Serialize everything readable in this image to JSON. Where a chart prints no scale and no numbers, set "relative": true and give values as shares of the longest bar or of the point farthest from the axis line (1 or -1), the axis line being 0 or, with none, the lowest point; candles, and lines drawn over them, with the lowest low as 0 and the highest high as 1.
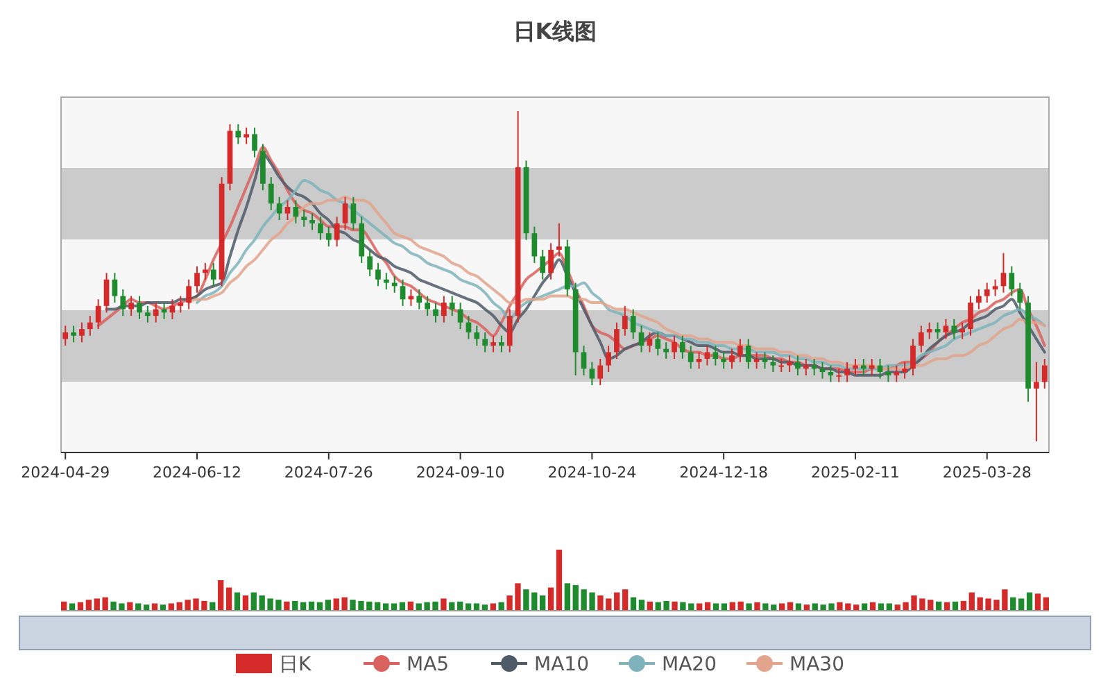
{
  "chart_data": [
    {
      "type": "candlestick",
      "title": "日K线图",
      "relative": true,
      "legend": "bottom",
      "categories": [
        "2024-04-29",
        null,
        null,
        null,
        null,
        null,
        null,
        null,
        null,
        null,
        null,
        null,
        null,
        null,
        null,
        null,
        "2024-06-12",
        null,
        null,
        null,
        null,
        null,
        null,
        null,
        null,
        null,
        null,
        null,
        null,
        null,
        null,
        null,
        "2024-07-26",
        null,
        null,
        null,
        null,
        null,
        null,
        null,
        null,
        null,
        null,
        null,
        null,
        null,
        null,
        null,
        "2024-09-10",
        null,
        null,
        null,
        null,
        null,
        null,
        null,
        null,
        null,
        null,
        null,
        null,
        null,
        null,
        null,
        "2024-10-24",
        null,
        null,
        null,
        null,
        null,
        null,
        null,
        null,
        null,
        null,
        null,
        null,
        null,
        null,
        null,
        "2024-12-18",
        null,
        null,
        null,
        null,
        null,
        null,
        null,
        null,
        null,
        null,
        null,
        null,
        null,
        null,
        null,
        "2025-02-11",
        null,
        null,
        null,
        null,
        null,
        null,
        null,
        null,
        null,
        null,
        null,
        null,
        null,
        null,
        null,
        "2025-03-28",
        null,
        null,
        null,
        null,
        null,
        null,
        null
      ],
      "series": [
        {
          "name": "日K",
          "type": "candlestick",
          "color": "#d42a2a",
          "ohlc": [
            [
              0.31,
              0.35,
              0.29,
              0.33
            ],
            [
              0.33,
              0.35,
              0.3,
              0.32
            ],
            [
              0.32,
              0.36,
              0.3,
              0.34
            ],
            [
              0.34,
              0.38,
              0.32,
              0.36
            ],
            [
              0.36,
              0.43,
              0.34,
              0.41
            ],
            [
              0.41,
              0.51,
              0.39,
              0.49
            ],
            [
              0.49,
              0.51,
              0.42,
              0.44
            ],
            [
              0.44,
              0.46,
              0.38,
              0.4
            ],
            [
              0.4,
              0.44,
              0.38,
              0.42
            ],
            [
              0.42,
              0.44,
              0.37,
              0.39
            ],
            [
              0.39,
              0.41,
              0.36,
              0.38
            ],
            [
              0.38,
              0.42,
              0.36,
              0.4
            ],
            [
              0.4,
              0.42,
              0.37,
              0.39
            ],
            [
              0.39,
              0.43,
              0.37,
              0.41
            ],
            [
              0.41,
              0.44,
              0.39,
              0.42
            ],
            [
              0.42,
              0.49,
              0.4,
              0.47
            ],
            [
              0.47,
              0.53,
              0.45,
              0.51
            ],
            [
              0.51,
              0.54,
              0.49,
              0.52
            ],
            [
              0.52,
              0.54,
              0.47,
              0.49
            ],
            [
              0.49,
              0.8,
              0.47,
              0.78
            ],
            [
              0.78,
              0.96,
              0.76,
              0.94
            ],
            [
              0.94,
              0.96,
              0.9,
              0.92
            ],
            [
              0.92,
              0.95,
              0.9,
              0.93
            ],
            [
              0.93,
              0.95,
              0.86,
              0.88
            ],
            [
              0.88,
              0.9,
              0.76,
              0.78
            ],
            [
              0.78,
              0.8,
              0.7,
              0.72
            ],
            [
              0.72,
              0.74,
              0.67,
              0.69
            ],
            [
              0.69,
              0.73,
              0.67,
              0.71
            ],
            [
              0.71,
              0.73,
              0.66,
              0.68
            ],
            [
              0.68,
              0.7,
              0.65,
              0.67
            ],
            [
              0.67,
              0.69,
              0.64,
              0.66
            ],
            [
              0.66,
              0.68,
              0.61,
              0.63
            ],
            [
              0.63,
              0.65,
              0.59,
              0.61
            ],
            [
              0.61,
              0.68,
              0.59,
              0.66
            ],
            [
              0.66,
              0.74,
              0.64,
              0.72
            ],
            [
              0.72,
              0.74,
              0.64,
              0.66
            ],
            [
              0.66,
              0.68,
              0.54,
              0.56
            ],
            [
              0.56,
              0.58,
              0.5,
              0.52
            ],
            [
              0.52,
              0.54,
              0.47,
              0.49
            ],
            [
              0.49,
              0.51,
              0.46,
              0.48
            ],
            [
              0.48,
              0.5,
              0.45,
              0.47
            ],
            [
              0.47,
              0.49,
              0.41,
              0.43
            ],
            [
              0.43,
              0.46,
              0.41,
              0.44
            ],
            [
              0.44,
              0.46,
              0.4,
              0.42
            ],
            [
              0.42,
              0.44,
              0.38,
              0.4
            ],
            [
              0.4,
              0.42,
              0.36,
              0.38
            ],
            [
              0.38,
              0.44,
              0.36,
              0.42
            ],
            [
              0.42,
              0.44,
              0.38,
              0.4
            ],
            [
              0.4,
              0.42,
              0.34,
              0.36
            ],
            [
              0.36,
              0.38,
              0.31,
              0.33
            ],
            [
              0.33,
              0.35,
              0.29,
              0.31
            ],
            [
              0.31,
              0.33,
              0.27,
              0.29
            ],
            [
              0.29,
              0.32,
              0.27,
              0.3
            ],
            [
              0.3,
              0.32,
              0.27,
              0.29
            ],
            [
              0.29,
              0.4,
              0.27,
              0.38
            ],
            [
              0.38,
              1.0,
              0.36,
              0.83
            ],
            [
              0.83,
              0.85,
              0.61,
              0.63
            ],
            [
              0.63,
              0.65,
              0.54,
              0.56
            ],
            [
              0.56,
              0.58,
              0.49,
              0.51
            ],
            [
              0.51,
              0.6,
              0.49,
              0.58
            ],
            [
              0.58,
              0.66,
              0.56,
              0.59
            ],
            [
              0.59,
              0.61,
              0.44,
              0.46
            ],
            [
              0.46,
              0.48,
              0.2,
              0.27
            ],
            [
              0.27,
              0.29,
              0.2,
              0.22
            ],
            [
              0.22,
              0.24,
              0.17,
              0.19
            ],
            [
              0.19,
              0.25,
              0.17,
              0.23
            ],
            [
              0.23,
              0.29,
              0.21,
              0.27
            ],
            [
              0.27,
              0.36,
              0.25,
              0.34
            ],
            [
              0.34,
              0.41,
              0.32,
              0.38
            ],
            [
              0.38,
              0.4,
              0.31,
              0.33
            ],
            [
              0.33,
              0.35,
              0.27,
              0.29
            ],
            [
              0.29,
              0.33,
              0.27,
              0.31
            ],
            [
              0.31,
              0.33,
              0.26,
              0.28
            ],
            [
              0.28,
              0.3,
              0.25,
              0.27
            ],
            [
              0.27,
              0.32,
              0.25,
              0.3
            ],
            [
              0.3,
              0.32,
              0.25,
              0.27
            ],
            [
              0.27,
              0.29,
              0.22,
              0.24
            ],
            [
              0.24,
              0.27,
              0.22,
              0.25
            ],
            [
              0.25,
              0.29,
              0.23,
              0.27
            ],
            [
              0.27,
              0.29,
              0.23,
              0.25
            ],
            [
              0.25,
              0.27,
              0.22,
              0.24
            ],
            [
              0.24,
              0.28,
              0.22,
              0.26
            ],
            [
              0.26,
              0.31,
              0.24,
              0.29
            ],
            [
              0.29,
              0.31,
              0.22,
              0.24
            ],
            [
              0.24,
              0.27,
              0.22,
              0.25
            ],
            [
              0.25,
              0.27,
              0.22,
              0.24
            ],
            [
              0.24,
              0.26,
              0.21,
              0.23
            ],
            [
              0.23,
              0.25,
              0.21,
              0.23
            ],
            [
              0.23,
              0.26,
              0.21,
              0.24
            ],
            [
              0.24,
              0.26,
              0.2,
              0.22
            ],
            [
              0.22,
              0.25,
              0.2,
              0.23
            ],
            [
              0.23,
              0.25,
              0.2,
              0.22
            ],
            [
              0.22,
              0.24,
              0.19,
              0.21
            ],
            [
              0.21,
              0.23,
              0.18,
              0.2
            ],
            [
              0.2,
              0.22,
              0.18,
              0.2
            ],
            [
              0.2,
              0.24,
              0.18,
              0.22
            ],
            [
              0.22,
              0.25,
              0.2,
              0.23
            ],
            [
              0.23,
              0.25,
              0.2,
              0.22
            ],
            [
              0.22,
              0.25,
              0.2,
              0.23
            ],
            [
              0.23,
              0.25,
              0.19,
              0.21
            ],
            [
              0.21,
              0.23,
              0.18,
              0.2
            ],
            [
              0.2,
              0.23,
              0.18,
              0.21
            ],
            [
              0.21,
              0.24,
              0.19,
              0.22
            ],
            [
              0.22,
              0.31,
              0.2,
              0.29
            ],
            [
              0.29,
              0.35,
              0.27,
              0.33
            ],
            [
              0.33,
              0.36,
              0.31,
              0.34
            ],
            [
              0.34,
              0.36,
              0.31,
              0.33
            ],
            [
              0.33,
              0.37,
              0.31,
              0.35
            ],
            [
              0.35,
              0.37,
              0.31,
              0.33
            ],
            [
              0.33,
              0.36,
              0.31,
              0.34
            ],
            [
              0.34,
              0.44,
              0.32,
              0.42
            ],
            [
              0.42,
              0.46,
              0.4,
              0.44
            ],
            [
              0.44,
              0.48,
              0.42,
              0.46
            ],
            [
              0.46,
              0.49,
              0.44,
              0.47
            ],
            [
              0.47,
              0.57,
              0.45,
              0.51
            ],
            [
              0.51,
              0.53,
              0.44,
              0.46
            ],
            [
              0.46,
              0.48,
              0.4,
              0.42
            ],
            [
              0.42,
              0.44,
              0.12,
              0.16
            ],
            [
              0.16,
              0.24,
              0.0,
              0.18
            ],
            [
              0.18,
              0.25,
              0.16,
              0.23
            ]
          ],
          "colors": [
            "#d42a2a",
            "#1e8c2e",
            "#d42a2a",
            "#d42a2a",
            "#d42a2a",
            "#d42a2a",
            "#1e8c2e",
            "#1e8c2e",
            "#d42a2a",
            "#1e8c2e",
            "#1e8c2e",
            "#d42a2a",
            "#1e8c2e",
            "#d42a2a",
            "#d42a2a",
            "#d42a2a",
            "#d42a2a",
            "#d42a2a",
            "#1e8c2e",
            "#d42a2a",
            "#d42a2a",
            "#1e8c2e",
            "#d42a2a",
            "#1e8c2e",
            "#1e8c2e",
            "#1e8c2e",
            "#1e8c2e",
            "#d42a2a",
            "#1e8c2e",
            "#1e8c2e",
            "#1e8c2e",
            "#1e8c2e",
            "#1e8c2e",
            "#d42a2a",
            "#d42a2a",
            "#1e8c2e",
            "#1e8c2e",
            "#1e8c2e",
            "#1e8c2e",
            "#1e8c2e",
            "#1e8c2e",
            "#1e8c2e",
            "#d42a2a",
            "#1e8c2e",
            "#1e8c2e",
            "#1e8c2e",
            "#d42a2a",
            "#1e8c2e",
            "#1e8c2e",
            "#1e8c2e",
            "#1e8c2e",
            "#1e8c2e",
            "#d42a2a",
            "#1e8c2e",
            "#d42a2a",
            "#d42a2a",
            "#1e8c2e",
            "#1e8c2e",
            "#1e8c2e",
            "#d42a2a",
            "#d42a2a",
            "#1e8c2e",
            "#1e8c2e",
            "#1e8c2e",
            "#1e8c2e",
            "#d42a2a",
            "#d42a2a",
            "#d42a2a",
            "#d42a2a",
            "#1e8c2e",
            "#1e8c2e",
            "#d42a2a",
            "#1e8c2e",
            "#1e8c2e",
            "#d42a2a",
            "#1e8c2e",
            "#1e8c2e",
            "#d42a2a",
            "#d42a2a",
            "#1e8c2e",
            "#1e8c2e",
            "#d42a2a",
            "#d42a2a",
            "#1e8c2e",
            "#d42a2a",
            "#1e8c2e",
            "#1e8c2e",
            "#d42a2a",
            "#d42a2a",
            "#1e8c2e",
            "#d42a2a",
            "#1e8c2e",
            "#1e8c2e",
            "#1e8c2e",
            "#d42a2a",
            "#d42a2a",
            "#d42a2a",
            "#1e8c2e",
            "#d42a2a",
            "#1e8c2e",
            "#1e8c2e",
            "#d42a2a",
            "#d42a2a",
            "#d42a2a",
            "#d42a2a",
            "#d42a2a",
            "#1e8c2e",
            "#d42a2a",
            "#1e8c2e",
            "#d42a2a",
            "#d42a2a",
            "#d42a2a",
            "#d42a2a",
            "#d42a2a",
            "#d42a2a",
            "#1e8c2e",
            "#1e8c2e",
            "#1e8c2e",
            "#d42a2a",
            "#d42a2a"
          ]
        },
        {
          "name": "MA5",
          "type": "line",
          "color": "#d9625e",
          "values": [
            null,
            null,
            null,
            null,
            0.35,
            0.37,
            0.39,
            0.41,
            0.43,
            0.42,
            0.42,
            0.41,
            0.4,
            0.41,
            0.42,
            0.43,
            0.44,
            0.49,
            0.55,
            0.6,
            0.65,
            0.71,
            0.77,
            0.83,
            0.89,
            0.85,
            0.81,
            0.76,
            0.72,
            0.7,
            0.69,
            0.67,
            0.65,
            0.65,
            0.65,
            0.64,
            0.64,
            0.61,
            0.57,
            0.54,
            0.5,
            0.48,
            0.47,
            0.45,
            0.43,
            0.42,
            0.41,
            0.4,
            0.39,
            0.37,
            0.36,
            0.34,
            0.32,
            0.36,
            0.41,
            0.45,
            0.49,
            0.51,
            0.53,
            0.55,
            0.57,
            0.52,
            0.46,
            0.41,
            0.35,
            0.33,
            0.32,
            0.3,
            0.28,
            0.29,
            0.3,
            0.31,
            0.32,
            0.31,
            0.3,
            0.28,
            0.27,
            0.27,
            0.26,
            0.26,
            0.25,
            0.25,
            0.26,
            0.26,
            0.26,
            0.26,
            0.25,
            0.25,
            0.24,
            0.24,
            0.23,
            0.23,
            0.22,
            0.22,
            0.22,
            0.21,
            0.21,
            0.21,
            0.22,
            0.22,
            0.22,
            0.23,
            0.24,
            0.24,
            0.25,
            0.27,
            0.3,
            0.32,
            0.34,
            0.36,
            0.37,
            0.39,
            0.4,
            0.42,
            0.43,
            0.45,
            0.46,
            0.4,
            0.35,
            0.29
          ]
        },
        {
          "name": "MA10",
          "type": "line",
          "color": "#4d5b69",
          "values": [
            null,
            null,
            null,
            null,
            null,
            0.4,
            0.4,
            0.41,
            0.41,
            0.41,
            0.42,
            0.42,
            0.42,
            0.42,
            0.43,
            0.43,
            0.44,
            0.46,
            0.47,
            0.48,
            0.56,
            0.64,
            0.71,
            0.79,
            0.87,
            0.84,
            0.8,
            0.77,
            0.75,
            0.74,
            0.72,
            0.69,
            0.67,
            0.64,
            0.63,
            0.61,
            0.6,
            0.58,
            0.56,
            0.55,
            0.53,
            0.52,
            0.51,
            0.49,
            0.48,
            0.47,
            0.46,
            0.45,
            0.44,
            0.43,
            0.42,
            0.4,
            0.38,
            0.35,
            0.33,
            0.37,
            0.4,
            0.44,
            0.48,
            0.51,
            0.55,
            0.5,
            0.45,
            0.4,
            0.35,
            0.3,
            0.25,
            0.26,
            0.28,
            0.29,
            0.3,
            0.32,
            0.33,
            0.32,
            0.32,
            0.31,
            0.3,
            0.29,
            0.29,
            0.28,
            0.27,
            0.27,
            0.26,
            0.26,
            0.25,
            0.25,
            0.25,
            0.24,
            0.24,
            0.23,
            0.23,
            0.23,
            0.22,
            0.22,
            0.21,
            0.21,
            0.2,
            0.2,
            0.2,
            0.2,
            0.21,
            0.21,
            0.21,
            0.23,
            0.25,
            0.28,
            0.3,
            0.32,
            0.33,
            0.34,
            0.36,
            0.37,
            0.38,
            0.4,
            0.41,
            0.43,
            0.39,
            0.35,
            0.31,
            0.27
          ]
        },
        {
          "name": "MA20",
          "type": "line",
          "color": "#7fb3bb",
          "values": [
            null,
            null,
            null,
            null,
            null,
            null,
            null,
            null,
            null,
            null,
            null,
            null,
            null,
            null,
            null,
            null,
            0.42,
            0.44,
            0.45,
            0.47,
            0.51,
            0.54,
            0.58,
            0.61,
            0.65,
            0.68,
            0.71,
            0.73,
            0.76,
            0.79,
            0.78,
            0.76,
            0.75,
            0.73,
            0.72,
            0.7,
            0.68,
            0.66,
            0.64,
            0.62,
            0.6,
            0.59,
            0.57,
            0.56,
            0.54,
            0.53,
            0.52,
            0.51,
            0.49,
            0.48,
            0.47,
            0.45,
            0.42,
            0.4,
            0.37,
            0.4,
            0.42,
            0.43,
            0.44,
            0.45,
            0.46,
            0.47,
            0.47,
            0.48,
            0.45,
            0.43,
            0.4,
            0.39,
            0.38,
            0.36,
            0.35,
            0.34,
            0.33,
            0.32,
            0.32,
            0.31,
            0.31,
            0.3,
            0.3,
            0.29,
            0.29,
            0.28,
            0.28,
            0.28,
            0.27,
            0.27,
            0.27,
            0.26,
            0.26,
            0.25,
            0.25,
            0.24,
            0.24,
            0.23,
            0.23,
            0.22,
            0.22,
            0.22,
            0.22,
            0.22,
            0.23,
            0.23,
            0.23,
            0.24,
            0.26,
            0.27,
            0.28,
            0.29,
            0.31,
            0.32,
            0.33,
            0.34,
            0.35,
            0.36,
            0.38,
            0.39,
            0.4,
            0.38,
            0.37,
            0.35
          ]
        },
        {
          "name": "MA30",
          "type": "line",
          "color": "#e2a48c",
          "values": [
            null,
            null,
            null,
            null,
            null,
            null,
            null,
            null,
            null,
            null,
            null,
            null,
            null,
            null,
            null,
            0.42,
            0.43,
            0.43,
            0.44,
            0.45,
            0.48,
            0.5,
            0.53,
            0.55,
            0.58,
            0.61,
            0.63,
            0.66,
            0.68,
            0.71,
            0.72,
            0.72,
            0.73,
            0.73,
            0.74,
            0.73,
            0.73,
            0.72,
            0.69,
            0.66,
            0.63,
            0.62,
            0.61,
            0.59,
            0.58,
            0.57,
            0.56,
            0.54,
            0.53,
            0.51,
            0.5,
            0.48,
            0.46,
            0.44,
            0.42,
            0.42,
            0.43,
            0.43,
            0.43,
            0.44,
            0.44,
            0.44,
            0.43,
            0.43,
            0.42,
            0.42,
            0.41,
            0.4,
            0.4,
            0.39,
            0.38,
            0.37,
            0.36,
            0.34,
            0.33,
            0.32,
            0.32,
            0.31,
            0.31,
            0.3,
            0.3,
            0.3,
            0.29,
            0.29,
            0.28,
            0.28,
            0.28,
            0.27,
            0.27,
            0.26,
            0.26,
            0.25,
            0.25,
            0.24,
            0.24,
            0.23,
            0.23,
            0.23,
            0.23,
            0.22,
            0.22,
            0.22,
            0.22,
            0.23,
            0.23,
            0.24,
            0.25,
            0.25,
            0.26,
            0.26,
            0.27,
            0.29,
            0.3,
            0.32,
            0.34,
            0.35,
            0.37,
            0.36,
            0.36,
            0.35
          ]
        }
      ]
    },
    {
      "type": "bar",
      "relative": true,
      "categories": [
        null,
        null,
        null,
        null,
        null,
        null,
        null,
        null,
        null,
        null,
        null,
        null,
        null,
        null,
        null,
        null,
        null,
        null,
        null,
        null,
        null,
        null,
        null,
        null,
        null,
        null,
        null,
        null,
        null,
        null,
        null,
        null,
        null,
        null,
        null,
        null,
        null,
        null,
        null,
        null,
        null,
        null,
        null,
        null,
        null,
        null,
        null,
        null,
        null,
        null,
        null,
        null,
        null,
        null,
        null,
        null,
        null,
        null,
        null,
        null,
        null,
        null,
        null,
        null,
        null,
        null,
        null,
        null,
        null,
        null,
        null,
        null,
        null,
        null,
        null,
        null,
        null,
        null,
        null,
        null,
        null,
        null,
        null,
        null,
        null,
        null,
        null,
        null,
        null,
        null,
        null,
        null,
        null,
        null,
        null,
        null,
        null,
        null,
        null,
        null,
        null,
        null,
        null,
        null,
        null,
        null,
        null,
        null,
        null,
        null,
        null,
        null,
        null,
        null,
        null,
        null,
        null,
        null,
        null,
        null
      ],
      "values": [
        0.15,
        0.12,
        0.14,
        0.18,
        0.2,
        0.22,
        0.15,
        0.12,
        0.14,
        0.12,
        0.1,
        0.12,
        0.1,
        0.12,
        0.14,
        0.18,
        0.2,
        0.16,
        0.14,
        0.5,
        0.38,
        0.3,
        0.25,
        0.3,
        0.25,
        0.2,
        0.18,
        0.15,
        0.16,
        0.14,
        0.15,
        0.14,
        0.18,
        0.2,
        0.22,
        0.18,
        0.16,
        0.15,
        0.14,
        0.12,
        0.12,
        0.14,
        0.15,
        0.12,
        0.14,
        0.15,
        0.2,
        0.14,
        0.15,
        0.12,
        0.12,
        0.1,
        0.12,
        0.14,
        0.25,
        0.45,
        0.35,
        0.3,
        0.25,
        0.38,
        1,
        0.45,
        0.42,
        0.35,
        0.3,
        0.25,
        0.2,
        0.3,
        0.35,
        0.22,
        0.18,
        0.15,
        0.14,
        0.16,
        0.15,
        0.14,
        0.12,
        0.12,
        0.14,
        0.12,
        0.12,
        0.14,
        0.15,
        0.12,
        0.14,
        0.12,
        0.1,
        0.12,
        0.14,
        0.12,
        0.1,
        0.12,
        0.1,
        0.12,
        0.14,
        0.12,
        0.1,
        0.12,
        0.14,
        0.12,
        0.12,
        0.1,
        0.14,
        0.25,
        0.2,
        0.18,
        0.15,
        0.14,
        0.15,
        0.16,
        0.3,
        0.22,
        0.2,
        0.18,
        0.35,
        0.22,
        0.2,
        0.3,
        0.28,
        0.22
      ],
      "colors": [
        "#d42a2a",
        "#1e8c2e",
        "#d42a2a",
        "#d42a2a",
        "#d42a2a",
        "#d42a2a",
        "#1e8c2e",
        "#1e8c2e",
        "#d42a2a",
        "#1e8c2e",
        "#1e8c2e",
        "#d42a2a",
        "#1e8c2e",
        "#d42a2a",
        "#d42a2a",
        "#d42a2a",
        "#d42a2a",
        "#d42a2a",
        "#1e8c2e",
        "#d42a2a",
        "#d42a2a",
        "#1e8c2e",
        "#d42a2a",
        "#1e8c2e",
        "#1e8c2e",
        "#1e8c2e",
        "#1e8c2e",
        "#d42a2a",
        "#1e8c2e",
        "#1e8c2e",
        "#1e8c2e",
        "#1e8c2e",
        "#1e8c2e",
        "#d42a2a",
        "#d42a2a",
        "#1e8c2e",
        "#1e8c2e",
        "#1e8c2e",
        "#1e8c2e",
        "#1e8c2e",
        "#1e8c2e",
        "#1e8c2e",
        "#d42a2a",
        "#1e8c2e",
        "#1e8c2e",
        "#1e8c2e",
        "#d42a2a",
        "#1e8c2e",
        "#1e8c2e",
        "#1e8c2e",
        "#1e8c2e",
        "#1e8c2e",
        "#d42a2a",
        "#1e8c2e",
        "#d42a2a",
        "#d42a2a",
        "#1e8c2e",
        "#1e8c2e",
        "#1e8c2e",
        "#d42a2a",
        "#d42a2a",
        "#1e8c2e",
        "#1e8c2e",
        "#1e8c2e",
        "#1e8c2e",
        "#d42a2a",
        "#d42a2a",
        "#d42a2a",
        "#d42a2a",
        "#1e8c2e",
        "#1e8c2e",
        "#d42a2a",
        "#1e8c2e",
        "#1e8c2e",
        "#d42a2a",
        "#1e8c2e",
        "#1e8c2e",
        "#d42a2a",
        "#d42a2a",
        "#1e8c2e",
        "#1e8c2e",
        "#d42a2a",
        "#d42a2a",
        "#1e8c2e",
        "#d42a2a",
        "#1e8c2e",
        "#1e8c2e",
        "#d42a2a",
        "#d42a2a",
        "#1e8c2e",
        "#d42a2a",
        "#1e8c2e",
        "#1e8c2e",
        "#1e8c2e",
        "#d42a2a",
        "#d42a2a",
        "#d42a2a",
        "#1e8c2e",
        "#d42a2a",
        "#1e8c2e",
        "#1e8c2e",
        "#d42a2a",
        "#d42a2a",
        "#d42a2a",
        "#d42a2a",
        "#d42a2a",
        "#1e8c2e",
        "#d42a2a",
        "#1e8c2e",
        "#d42a2a",
        "#d42a2a",
        "#d42a2a",
        "#d42a2a",
        "#d42a2a",
        "#d42a2a",
        "#1e8c2e",
        "#1e8c2e",
        "#1e8c2e",
        "#d42a2a",
        "#d42a2a"
      ]
    }
  ]
}
